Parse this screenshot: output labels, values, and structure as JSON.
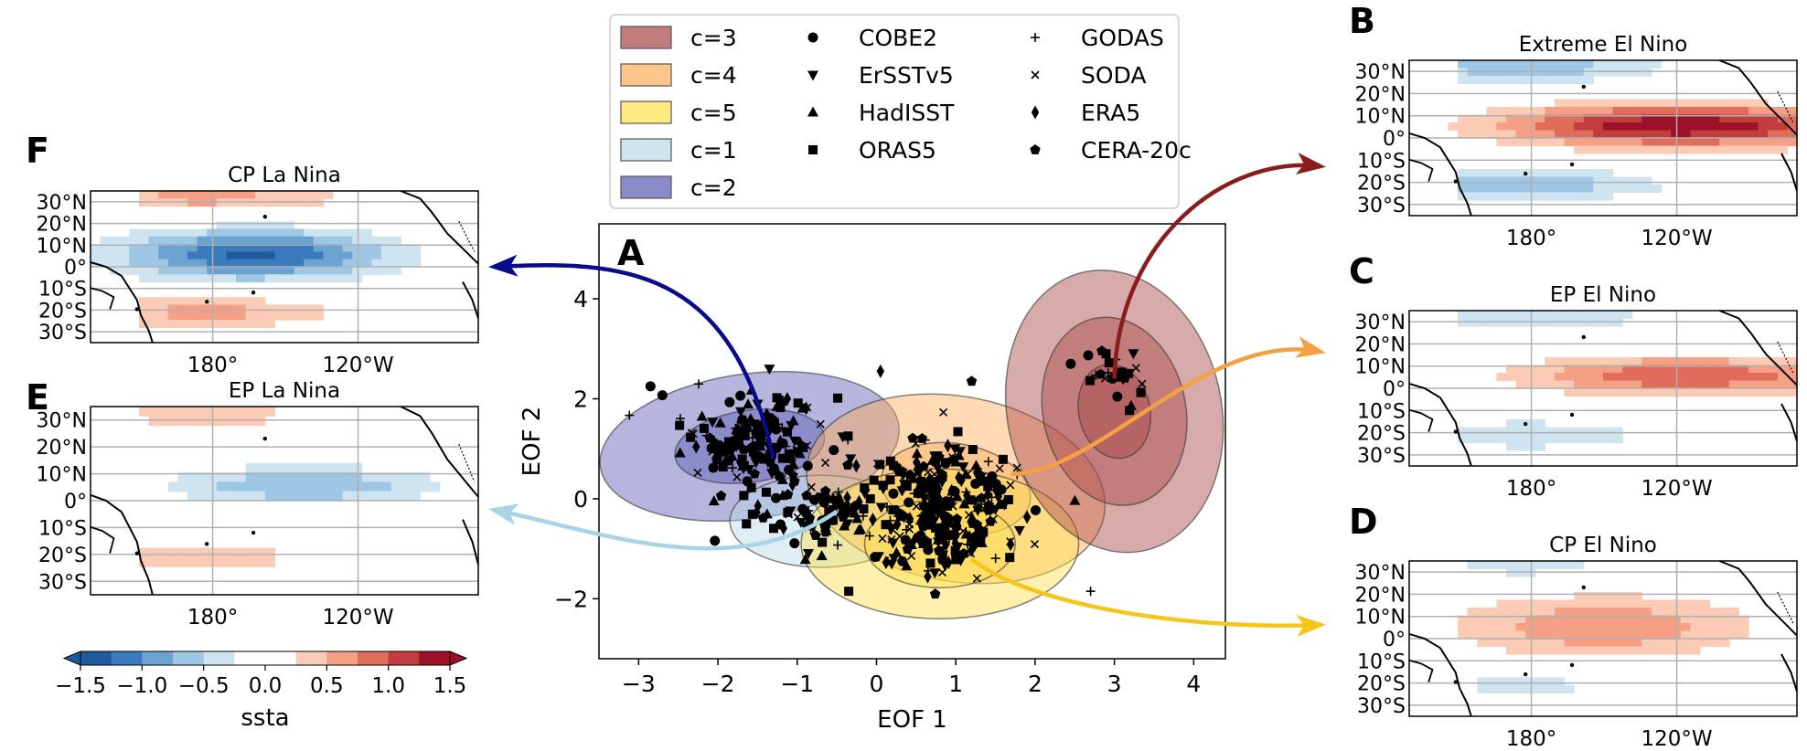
{
  "chart_data": [
    {
      "type": "scatter",
      "panel": "A",
      "xlabel": "EOF 1",
      "ylabel": "EOF 2",
      "xlim": [
        -3.5,
        4.4
      ],
      "ylim": [
        -3.2,
        5.5
      ],
      "xticks": [
        -3,
        -2,
        -1,
        0,
        1,
        2,
        3,
        4
      ],
      "yticks": [
        -2,
        0,
        2,
        4
      ],
      "xtick_labels": [
        "−3",
        "−2",
        "−1",
        "0",
        "1",
        "2",
        "3",
        "4"
      ],
      "ytick_labels": [
        "−2",
        "0",
        "2",
        "4"
      ],
      "clusters": [
        {
          "name": "c=2",
          "color": "#5a5ab4",
          "center": [
            -1.6,
            1.05
          ],
          "radii": [
            [
              0.95,
              0.72
            ],
            [
              1.9,
              1.45
            ]
          ],
          "angle": -8
        },
        {
          "name": "c=1",
          "color": "#b9dae8",
          "center": [
            -0.7,
            -0.45
          ],
          "radii": [
            [
              1.15,
              0.92
            ]
          ],
          "angle": 0
        },
        {
          "name": "c=4",
          "color": "#ffac5a",
          "center": [
            1.0,
            0.2
          ],
          "radii": [
            [
              0.95,
              0.9
            ],
            [
              1.9,
              1.85
            ]
          ],
          "angle": 10
        },
        {
          "name": "c=5",
          "color": "#ffe04a",
          "center": [
            0.8,
            -0.9
          ],
          "radii": [
            [
              0.95,
              0.88
            ],
            [
              1.75,
              1.5
            ]
          ],
          "angle": 0
        },
        {
          "name": "c=3",
          "color": "#a84545",
          "center": [
            3.0,
            1.75
          ],
          "radii": [
            [
              0.45,
              0.95
            ],
            [
              0.9,
              1.9
            ],
            [
              1.35,
              2.85
            ]
          ],
          "angle": -12
        }
      ],
      "legend": {
        "placement": "top-center",
        "clusters": [
          "c=3",
          "c=4",
          "c=5",
          "c=1",
          "c=2"
        ],
        "datasets": [
          {
            "name": "COBE2",
            "marker": "circle"
          },
          {
            "name": "ErSSTv5",
            "marker": "triangle-down"
          },
          {
            "name": "HadISST",
            "marker": "triangle-up"
          },
          {
            "name": "ORAS5",
            "marker": "square"
          },
          {
            "name": "GODAS",
            "marker": "plus"
          },
          {
            "name": "SODA",
            "marker": "x"
          },
          {
            "name": "ERA5",
            "marker": "diamond"
          },
          {
            "name": "CERA-20c",
            "marker": "pentagon"
          }
        ]
      },
      "outlier_points": [
        [
          -2.85,
          2.25
        ],
        [
          -1.35,
          2.6
        ],
        [
          -2.05,
          -0.05
        ],
        [
          -0.35,
          -1.85
        ],
        [
          2.7,
          -1.85
        ],
        [
          3.35,
          2.3
        ],
        [
          0.05,
          2.55
        ],
        [
          1.2,
          2.35
        ],
        [
          2.45,
          2.7
        ]
      ]
    },
    {
      "type": "heatmap",
      "panel": "B",
      "title": "Extreme El Nino",
      "xtick_labels": [
        "180°",
        "120°W"
      ],
      "ytick_labels": [
        "30°N",
        "20°N",
        "10°N",
        "0°",
        "10°S",
        "20°S",
        "30°S"
      ],
      "sign": 1,
      "peak": 1.5,
      "center_lon": 0.7,
      "spread_lon": 0.45,
      "spread_lat": 0.13
    },
    {
      "type": "heatmap",
      "panel": "C",
      "title": "EP El Nino",
      "xtick_labels": [
        "180°",
        "120°W"
      ],
      "ytick_labels": [
        "30°N",
        "20°N",
        "10°N",
        "0°",
        "10°S",
        "20°S",
        "30°S"
      ],
      "sign": 1,
      "peak": 1.0,
      "center_lon": 0.72,
      "spread_lon": 0.42,
      "spread_lat": 0.12
    },
    {
      "type": "heatmap",
      "panel": "D",
      "title": "CP El Nino",
      "xtick_labels": [
        "180°",
        "120°W"
      ],
      "ytick_labels": [
        "30°N",
        "20°N",
        "10°N",
        "0°",
        "10°S",
        "20°S",
        "30°S"
      ],
      "sign": 1,
      "peak": 0.7,
      "center_lon": 0.5,
      "spread_lon": 0.38,
      "spread_lat": 0.2
    },
    {
      "type": "heatmap",
      "panel": "F",
      "title": "CP La Nina",
      "xtick_labels": [
        "180°",
        "120°W"
      ],
      "ytick_labels": [
        "30°N",
        "20°N",
        "10°N",
        "0°",
        "10°S",
        "20°S",
        "30°S"
      ],
      "sign": -1,
      "peak": 1.3,
      "center_lon": 0.42,
      "spread_lon": 0.34,
      "spread_lat": 0.16
    },
    {
      "type": "heatmap",
      "panel": "E",
      "title": "EP La Nina",
      "xtick_labels": [
        "180°",
        "120°W"
      ],
      "ytick_labels": [
        "30°N",
        "20°N",
        "10°N",
        "0°",
        "10°S",
        "20°S",
        "30°S"
      ],
      "sign": -1,
      "peak": 0.75,
      "center_lon": 0.55,
      "spread_lon": 0.34,
      "spread_lat": 0.1
    }
  ],
  "colorbar": {
    "label": "ssta",
    "range": [
      -1.5,
      1.5
    ],
    "ticks": [
      -1.5,
      -1.0,
      -0.5,
      0.0,
      0.5,
      1.0,
      1.5
    ],
    "tick_labels": [
      "−1.5",
      "−1.0",
      "−0.5",
      "0.0",
      "0.5",
      "1.0",
      "1.5"
    ],
    "colors": [
      "#1f5a9c",
      "#3a7bbd",
      "#6aa3d2",
      "#9dc7e4",
      "#cfe4f1",
      "#ffffff",
      "#ffffff",
      "#fbcbb5",
      "#f59f84",
      "#e06c5a",
      "#c43c3d",
      "#9c1028"
    ]
  },
  "arrows": [
    {
      "from_cluster": "c=3",
      "to_panel": "B",
      "color": "#8b1c1c"
    },
    {
      "from_cluster": "c=4",
      "to_panel": "C",
      "color": "#f5a043"
    },
    {
      "from_cluster": "c=5",
      "to_panel": "D",
      "color": "#f6c51a"
    },
    {
      "from_cluster": "c=2",
      "to_panel": "F",
      "color": "#0a0a8c"
    },
    {
      "from_cluster": "c=1",
      "to_panel": "E",
      "color": "#a8d4e6"
    }
  ],
  "panel_letters": [
    "A",
    "B",
    "C",
    "D",
    "E",
    "F"
  ]
}
